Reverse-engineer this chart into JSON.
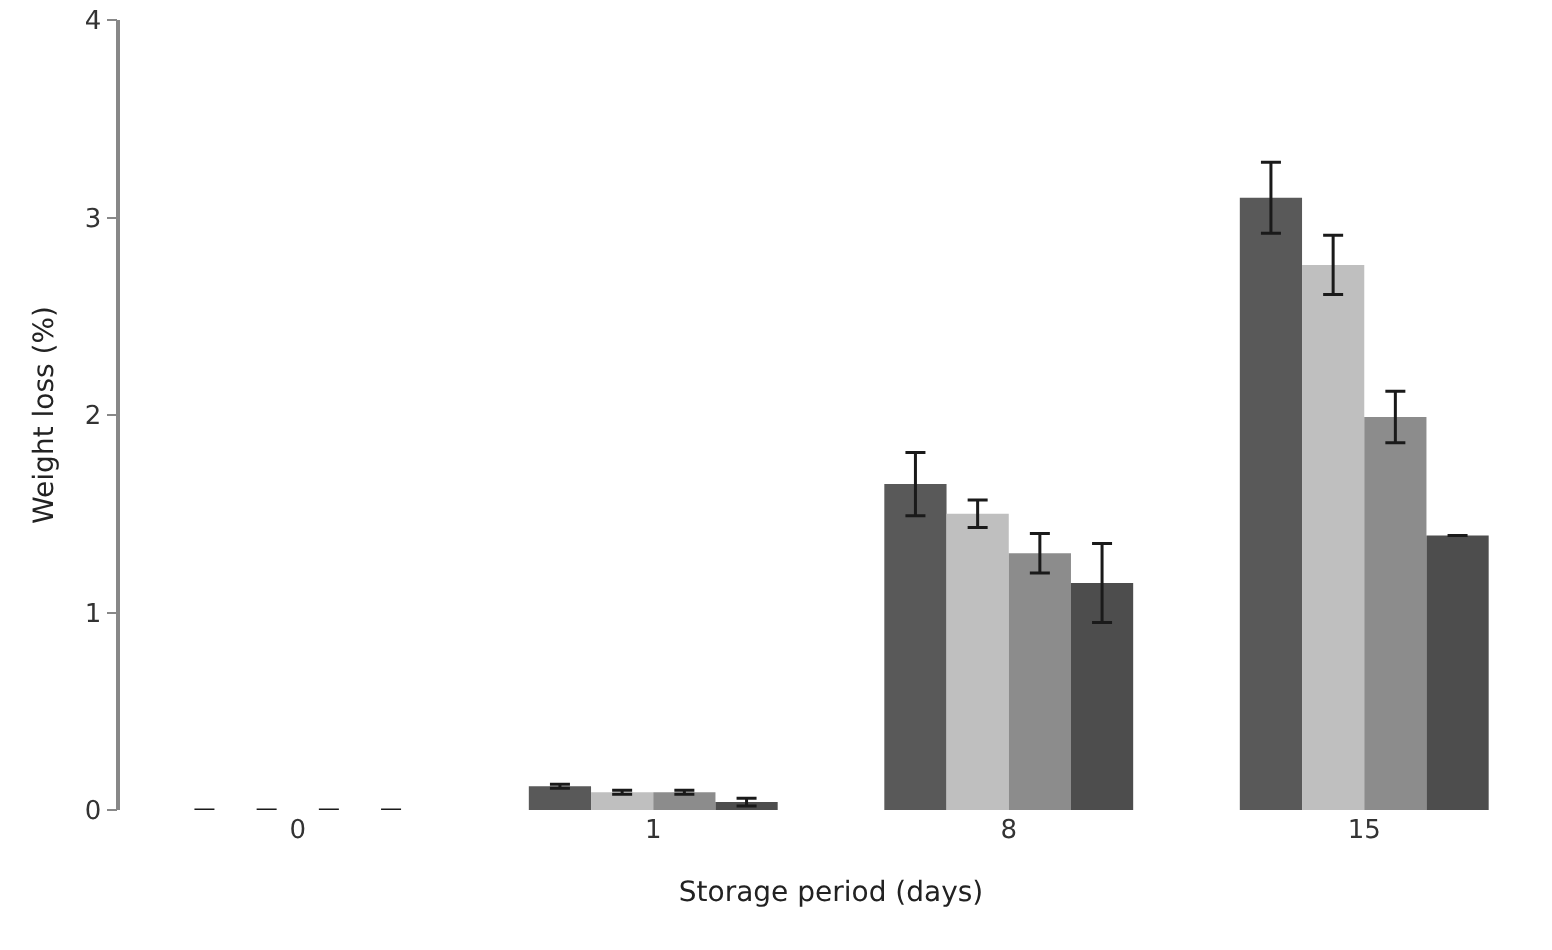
{
  "chart_data": {
    "type": "bar",
    "xlabel": "Storage period (days)",
    "ylabel": "Weight loss (%)",
    "categories": [
      "0",
      "1",
      "8",
      "15"
    ],
    "series": [
      {
        "color": "#595959",
        "values": [
          0,
          0.12,
          1.65,
          3.1
        ],
        "errors": [
          null,
          0.01,
          0.16,
          0.18
        ]
      },
      {
        "color": "#bfbfbf",
        "values": [
          0,
          0.09,
          1.5,
          2.76
        ],
        "errors": [
          null,
          0.01,
          0.07,
          0.15
        ]
      },
      {
        "color": "#8c8c8c",
        "values": [
          0,
          0.09,
          1.3,
          1.99
        ],
        "errors": [
          null,
          0.01,
          0.1,
          0.13
        ]
      },
      {
        "color": "#4d4d4d",
        "values": [
          0,
          0.04,
          1.15,
          1.39
        ],
        "errors": [
          null,
          0.02,
          0.2,
          null
        ]
      }
    ],
    "ylim": [
      0,
      4
    ],
    "yticks": [
      0,
      1,
      2,
      3,
      4
    ]
  }
}
